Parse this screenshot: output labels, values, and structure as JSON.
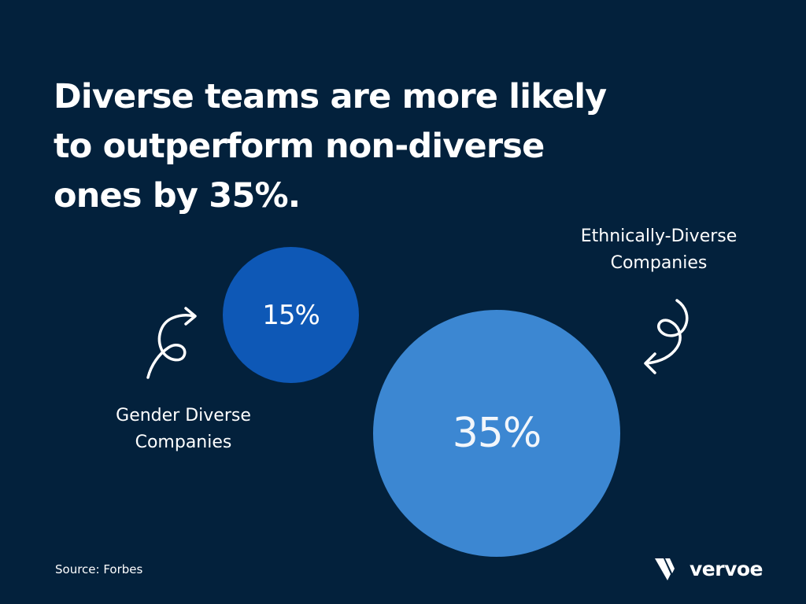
{
  "headline": {
    "line1": "Diverse teams are more likely",
    "line2": "to outperform non-diverse",
    "line3": "ones by 35%."
  },
  "chart_data": {
    "type": "bubble",
    "title": "Diverse teams are more likely to outperform non-diverse ones by 35%.",
    "series": [
      {
        "label_line1": "Gender Diverse",
        "label_line2": "Companies",
        "value": 15,
        "value_label": "15%",
        "color": "#0e58b6"
      },
      {
        "label_line1": "Ethnically-Diverse",
        "label_line2": "Companies",
        "value": 35,
        "value_label": "35%",
        "color": "#3c87d2"
      }
    ]
  },
  "source": "Source: Forbes",
  "brand": {
    "name": "vervoe",
    "icon": "vervoe-v-logo-icon"
  },
  "colors": {
    "background": "#03213c",
    "text": "#ffffff"
  }
}
